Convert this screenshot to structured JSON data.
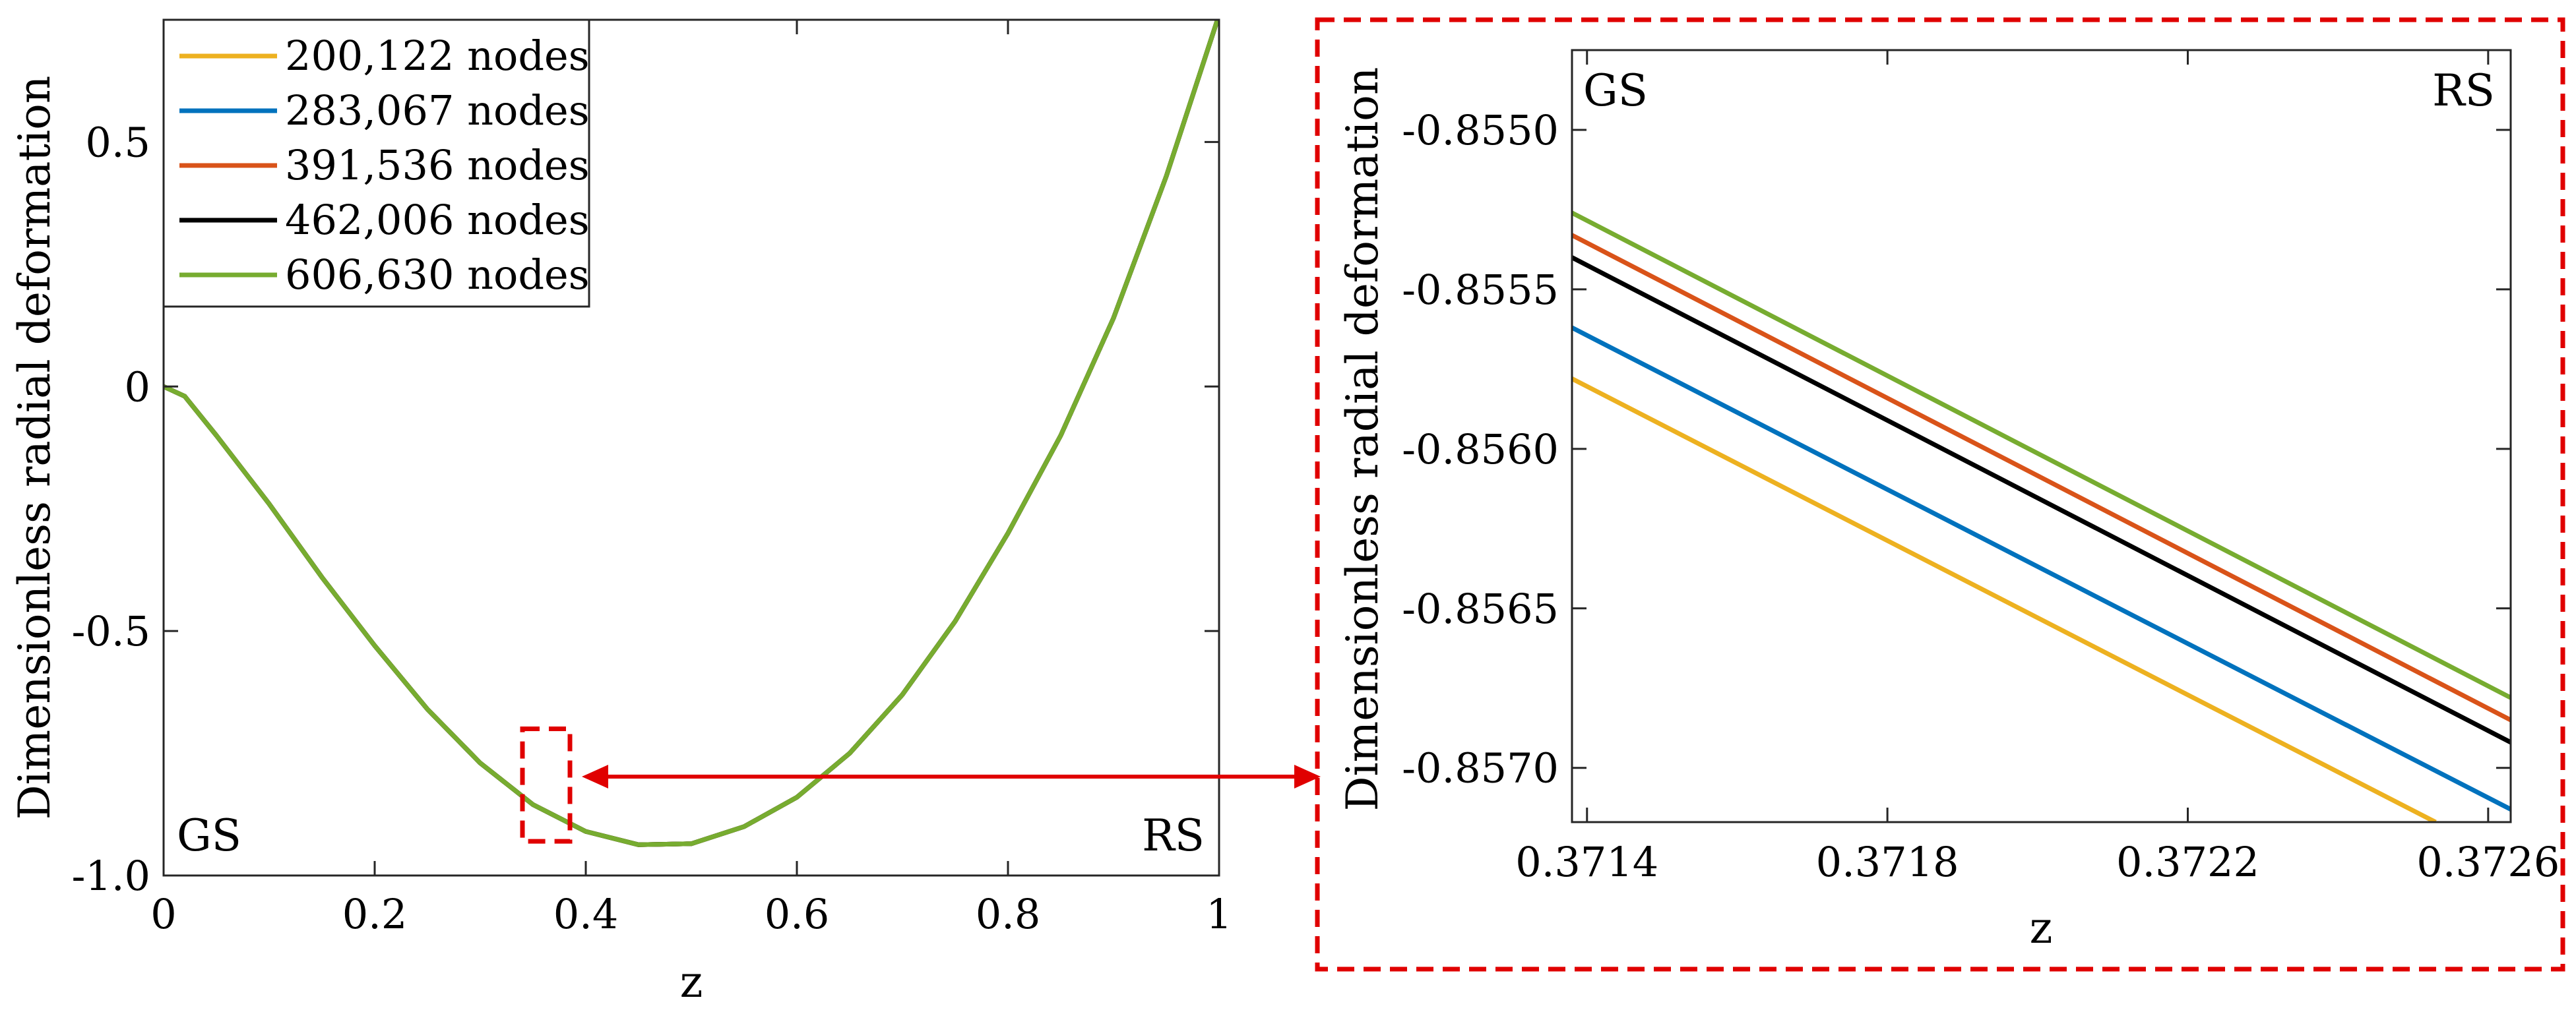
{
  "colors": {
    "s200k": "#EDB120",
    "s283k": "#0072BD",
    "s391k": "#D95319",
    "s462k": "#000000",
    "s606k": "#77AC30",
    "highlight": "#E00000"
  },
  "chart_data": [
    {
      "type": "line",
      "panel": "overview",
      "xlabel": "z",
      "ylabel": "Dimensionless radial deformation",
      "xlim": [
        0,
        1
      ],
      "ylim": [
        -1.0,
        0.75
      ],
      "xticks": [
        0,
        0.2,
        0.4,
        0.6,
        0.8,
        1
      ],
      "xtick_labels": [
        "0",
        "0.2",
        "0.4",
        "0.6",
        "0.8",
        "1"
      ],
      "yticks": [
        -1.0,
        -0.5,
        0,
        0.5
      ],
      "ytick_labels": [
        "-1.0",
        "-0.5",
        "0",
        "0.5"
      ],
      "left_label": "GS",
      "right_label": "RS",
      "legend_position": "top-left",
      "zoom_box": {
        "x": [
          0.34,
          0.385
        ],
        "y": [
          -0.93,
          -0.7
        ]
      },
      "x": [
        0,
        0.02,
        0.05,
        0.1,
        0.15,
        0.2,
        0.25,
        0.3,
        0.35,
        0.4,
        0.45,
        0.5,
        0.55,
        0.6,
        0.65,
        0.7,
        0.75,
        0.8,
        0.85,
        0.9,
        0.95,
        1.0
      ],
      "series": [
        {
          "name": "200,122 nodes",
          "color_key": "s200k",
          "values": [
            0,
            -0.02,
            -0.1,
            -0.24,
            -0.39,
            -0.53,
            -0.66,
            -0.77,
            -0.855,
            -0.91,
            -0.937,
            -0.935,
            -0.9,
            -0.84,
            -0.75,
            -0.63,
            -0.48,
            -0.3,
            -0.1,
            0.14,
            0.43,
            0.76
          ]
        },
        {
          "name": "283,067 nodes",
          "color_key": "s283k",
          "values": [
            0,
            -0.02,
            -0.1,
            -0.24,
            -0.39,
            -0.53,
            -0.66,
            -0.77,
            -0.855,
            -0.91,
            -0.937,
            -0.935,
            -0.9,
            -0.84,
            -0.75,
            -0.63,
            -0.48,
            -0.3,
            -0.1,
            0.14,
            0.43,
            0.76
          ]
        },
        {
          "name": "391,536 nodes",
          "color_key": "s391k",
          "values": [
            0,
            -0.02,
            -0.1,
            -0.24,
            -0.39,
            -0.53,
            -0.66,
            -0.77,
            -0.855,
            -0.91,
            -0.937,
            -0.935,
            -0.9,
            -0.84,
            -0.75,
            -0.63,
            -0.48,
            -0.3,
            -0.1,
            0.14,
            0.43,
            0.76
          ]
        },
        {
          "name": "462,006 nodes",
          "color_key": "s462k",
          "values": [
            0,
            -0.02,
            -0.1,
            -0.24,
            -0.39,
            -0.53,
            -0.66,
            -0.77,
            -0.855,
            -0.91,
            -0.937,
            -0.935,
            -0.9,
            -0.84,
            -0.75,
            -0.63,
            -0.48,
            -0.3,
            -0.1,
            0.14,
            0.43,
            0.76
          ]
        },
        {
          "name": "606,630 nodes",
          "color_key": "s606k",
          "values": [
            0,
            -0.02,
            -0.1,
            -0.24,
            -0.39,
            -0.53,
            -0.66,
            -0.77,
            -0.855,
            -0.91,
            -0.937,
            -0.935,
            -0.9,
            -0.84,
            -0.75,
            -0.63,
            -0.48,
            -0.3,
            -0.1,
            0.14,
            0.43,
            0.76
          ]
        }
      ]
    },
    {
      "type": "line",
      "panel": "zoom",
      "xlabel": "z",
      "ylabel": "Dimensionless radial deformation",
      "xlim": [
        0.37138,
        0.37263
      ],
      "ylim": [
        -0.85717,
        -0.85475
      ],
      "xticks": [
        0.3714,
        0.3718,
        0.3722,
        0.3726
      ],
      "xtick_labels": [
        "0.3714",
        "0.3718",
        "0.3722",
        "0.3726"
      ],
      "yticks": [
        -0.855,
        -0.8555,
        -0.856,
        -0.8565,
        -0.857
      ],
      "ytick_labels": [
        "-0.8550",
        "-0.8555",
        "-0.8560",
        "-0.8565",
        "-0.8570"
      ],
      "left_label": "GS",
      "right_label": "RS",
      "series": [
        {
          "name": "200,122 nodes",
          "color_key": "s200k",
          "x": [
            0.37138,
            0.37253
          ],
          "values": [
            -0.85578,
            -0.85717
          ]
        },
        {
          "name": "283,067 nodes",
          "color_key": "s283k",
          "x": [
            0.37138,
            0.37263
          ],
          "values": [
            -0.85562,
            -0.85713
          ]
        },
        {
          "name": "391,536 nodes",
          "color_key": "s391k",
          "x": [
            0.37138,
            0.37263
          ],
          "values": [
            -0.85533,
            -0.85685
          ]
        },
        {
          "name": "462,006 nodes",
          "color_key": "s462k",
          "x": [
            0.37138,
            0.37263
          ],
          "values": [
            -0.8554,
            -0.85692
          ]
        },
        {
          "name": "606,630 nodes",
          "color_key": "s606k",
          "x": [
            0.37138,
            0.37263
          ],
          "values": [
            -0.85526,
            -0.85678
          ]
        }
      ]
    }
  ]
}
